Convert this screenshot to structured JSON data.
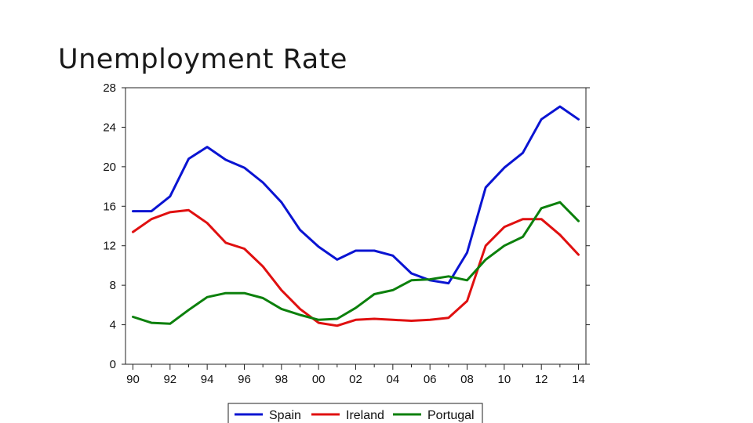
{
  "slide": {
    "title": "Unemployment Rate"
  },
  "chart_data": {
    "type": "line",
    "title": "",
    "xlabel": "",
    "ylabel": "",
    "x": [
      1990,
      1991,
      1992,
      1993,
      1994,
      1995,
      1996,
      1997,
      1998,
      1999,
      2000,
      2001,
      2002,
      2003,
      2004,
      2005,
      2006,
      2007,
      2008,
      2009,
      2010,
      2011,
      2012,
      2013,
      2014
    ],
    "x_tick_labels": [
      "90",
      "92",
      "94",
      "96",
      "98",
      "00",
      "02",
      "04",
      "06",
      "08",
      "10",
      "12",
      "14"
    ],
    "x_tick_values": [
      1990,
      1992,
      1994,
      1996,
      1998,
      2000,
      2002,
      2004,
      2006,
      2008,
      2010,
      2012,
      2014
    ],
    "xlim": [
      1989.6,
      2014.4
    ],
    "ylim": [
      0,
      28
    ],
    "y_ticks": [
      0,
      4,
      8,
      12,
      16,
      20,
      24,
      28
    ],
    "grid": false,
    "legend_position": "bottom",
    "series": [
      {
        "name": "Spain",
        "color": "#0a14d2",
        "values": [
          15.5,
          15.5,
          17.0,
          20.8,
          22.0,
          20.7,
          19.9,
          18.4,
          16.4,
          13.6,
          11.9,
          10.6,
          11.5,
          11.5,
          11.0,
          9.2,
          8.5,
          8.2,
          11.3,
          17.9,
          19.9,
          21.4,
          24.8,
          26.1,
          24.8
        ]
      },
      {
        "name": "Ireland",
        "color": "#e01010",
        "values": [
          13.4,
          14.7,
          15.4,
          15.6,
          14.3,
          12.3,
          11.7,
          9.9,
          7.5,
          5.6,
          4.2,
          3.9,
          4.5,
          4.6,
          4.5,
          4.4,
          4.5,
          4.7,
          6.4,
          12.0,
          13.9,
          14.7,
          14.7,
          13.1,
          11.1
        ]
      },
      {
        "name": "Portugal",
        "color": "#0c800c",
        "values": [
          4.8,
          4.2,
          4.1,
          5.5,
          6.8,
          7.2,
          7.2,
          6.7,
          5.6,
          5.0,
          4.5,
          4.6,
          5.7,
          7.1,
          7.5,
          8.5,
          8.6,
          8.9,
          8.5,
          10.6,
          12.0,
          12.9,
          15.8,
          16.4,
          14.5
        ]
      }
    ]
  }
}
